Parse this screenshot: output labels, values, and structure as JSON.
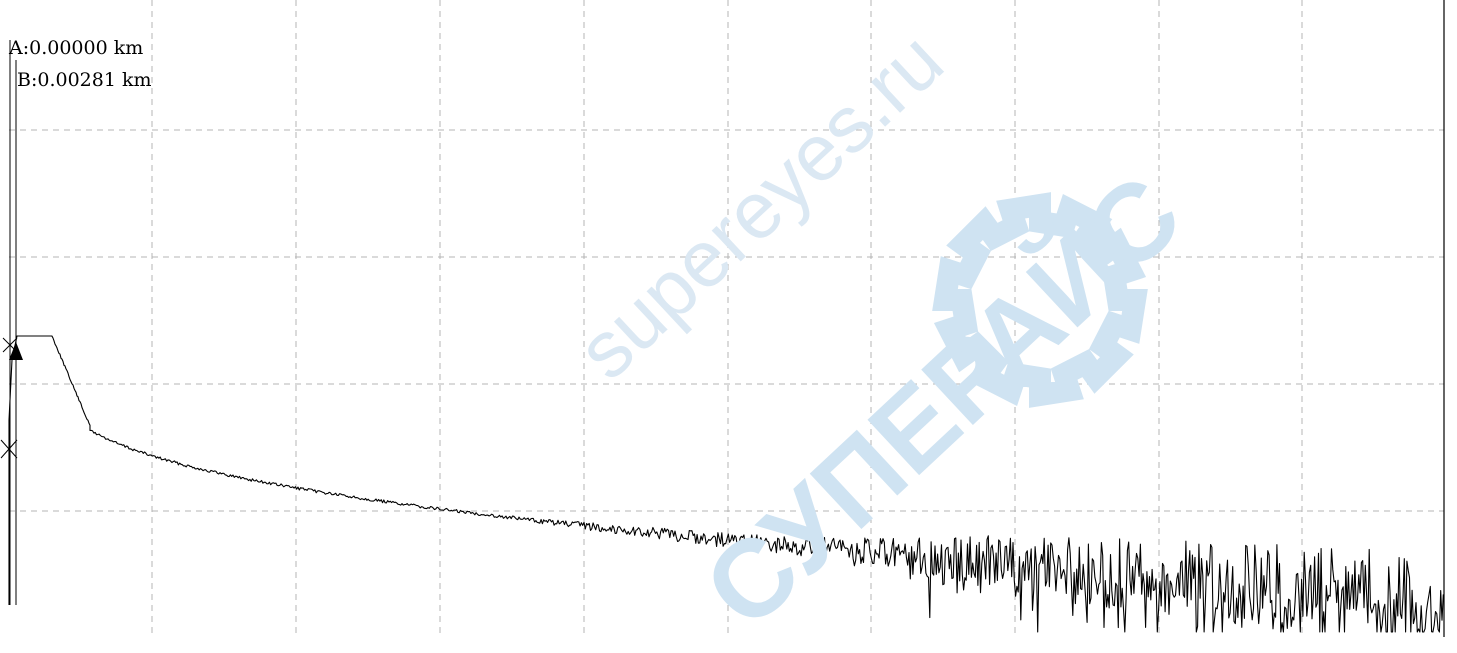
{
  "colors": {
    "background": "#ffffff",
    "trace": "#000000",
    "grid": "#b4b4b4",
    "watermark": "#cfe3f2"
  },
  "cursors": {
    "a_label": "A:0.00000 km",
    "b_label": "B:0.00281 km",
    "a_marker_icon": "x-marker-icon",
    "b_marker_icon": "triangle-marker-icon"
  },
  "watermark": {
    "text1": "supereyes.ru",
    "text2": "СУПЕРАЙС",
    "logo_icon": "gear-logo-icon"
  },
  "chart_data": {
    "type": "line",
    "grid": true,
    "title": "",
    "xlabel": "",
    "ylabel": "",
    "series": [
      {
        "name": "",
        "mode": "trace"
      }
    ]
  }
}
